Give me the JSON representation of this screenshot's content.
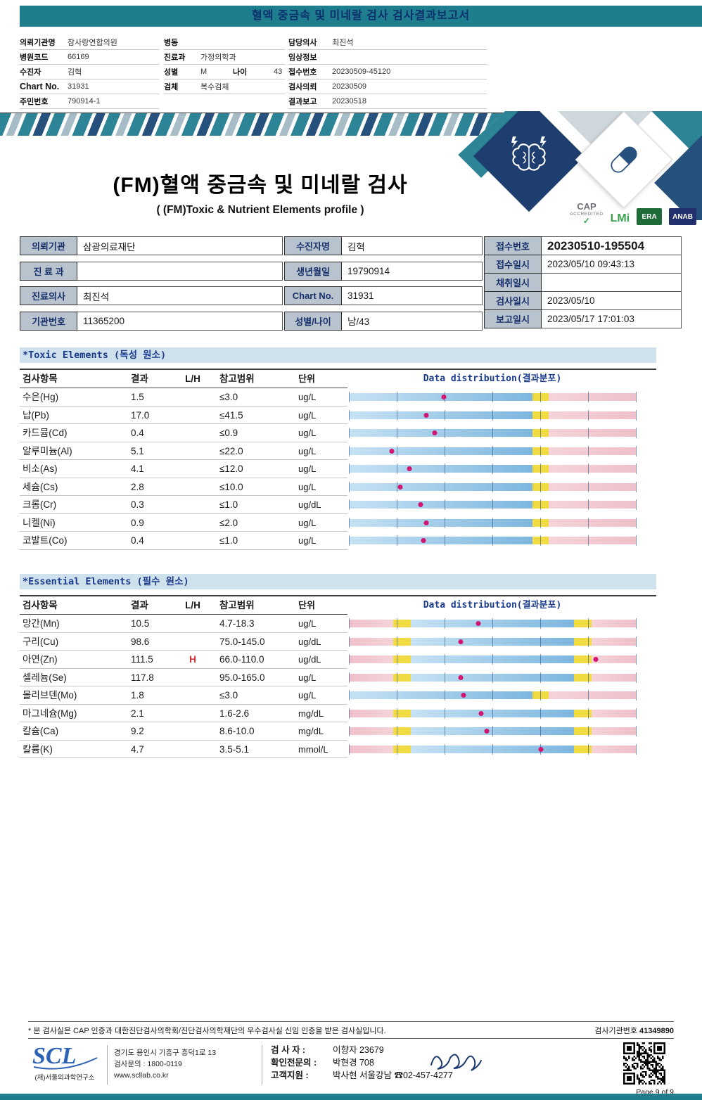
{
  "colors": {
    "teal": "#1f7e8d",
    "navy": "#15357a",
    "section_bg": "#cfe1ec",
    "label_bg": "#b8c3cd",
    "bar_blue_light": "#c6e2f4",
    "bar_blue": "#7db6de",
    "bar_yellow": "#f0db43",
    "bar_pink": "#efc0ca",
    "bar_pink_light": "#f5d3d9",
    "dot": "#d21670",
    "flag_red": "#d83030"
  },
  "top_bar": {
    "title": "혈액 중금속 및 미네랄 검사 검사결과보고서"
  },
  "patient_header": {
    "col1": [
      {
        "label": "의뢰기관명",
        "value": "참사랑연합의원"
      },
      {
        "label": "병원코드",
        "value": "66169"
      },
      {
        "label": "수진자",
        "value": "김혁"
      },
      {
        "label": "Chart No.",
        "value": "31931"
      },
      {
        "label": "주민번호",
        "value": "790914-1"
      }
    ],
    "col2": [
      {
        "label": "병동",
        "value": ""
      },
      {
        "label": "진료과",
        "value": "가정의학과"
      },
      {
        "label": "성별",
        "value": "M",
        "label2": "나이",
        "value2": "43"
      },
      {
        "label": "검체",
        "value": "복수검체"
      }
    ],
    "col3": [
      {
        "label": "담당의사",
        "value": "최진석"
      },
      {
        "label": "임상정보",
        "value": ""
      },
      {
        "label": "접수번호",
        "value": "20230509-45120"
      },
      {
        "label": "검사의뢰",
        "value": "20230509"
      },
      {
        "label": "결과보고",
        "value": "20230518"
      }
    ]
  },
  "title_block": {
    "title": "(FM)혈액 중금속 및 미네랄 검사",
    "subtitle": "( (FM)Toxic & Nutrient Elements profile )",
    "cert_logos": [
      {
        "text": "CAP",
        "sub": "ACCREDITED",
        "check": true,
        "color": "#6d7276",
        "style": "cap"
      },
      {
        "text": "LMi",
        "sub": "",
        "check": false,
        "color": "#3aa14e",
        "style": "text"
      },
      {
        "text": "ERA",
        "sub": "",
        "check": false,
        "color": "#1f6b3a",
        "style": "box"
      },
      {
        "text": "ANAB",
        "sub": "",
        "check": false,
        "color": "#23306e",
        "style": "box"
      }
    ]
  },
  "info_table": {
    "left": [
      {
        "label": "의뢰기관",
        "value": "삼광의료재단"
      },
      {
        "label": "진 료 과",
        "value": ""
      },
      {
        "label": "진료의사",
        "value": "최진석"
      },
      {
        "label": "기관번호",
        "value": "11365200"
      }
    ],
    "mid": [
      {
        "label": "수진자명",
        "value": "김혁"
      },
      {
        "label": "생년월일",
        "value": "19790914"
      },
      {
        "label": "Chart No.",
        "value": "31931"
      },
      {
        "label": "성별/나이",
        "value": "남/43"
      }
    ],
    "right": [
      {
        "label": "접수번호",
        "value": "20230510-195504",
        "big": true
      },
      {
        "label": "접수일시",
        "value": "2023/05/10 09:43:13"
      },
      {
        "label": "채취일시",
        "value": ""
      },
      {
        "label": "검사일시",
        "value": "2023/05/10"
      },
      {
        "label": "보고일시",
        "value": "2023/05/17 17:01:03"
      }
    ]
  },
  "sections": [
    {
      "title": "*Toxic Elements (독성 원소)",
      "columns": [
        "검사항목",
        "결과",
        "L/H",
        "참고범위",
        "단위",
        "Data distribution(결과분포)"
      ],
      "rows": [
        {
          "item": "수은(Hg)",
          "result": "1.5",
          "flag": "",
          "range": "≤3.0",
          "unit": "ug/L",
          "bar": "upper",
          "dot": 0.33
        },
        {
          "item": "납(Pb)",
          "result": "17.0",
          "flag": "",
          "range": "≤41.5",
          "unit": "ug/L",
          "bar": "upper",
          "dot": 0.27
        },
        {
          "item": "카드뮴(Cd)",
          "result": "0.4",
          "flag": "",
          "range": "≤0.9",
          "unit": "ug/L",
          "bar": "upper",
          "dot": 0.3
        },
        {
          "item": "알루미늄(Al)",
          "result": "5.1",
          "flag": "",
          "range": "≤22.0",
          "unit": "ug/L",
          "bar": "upper",
          "dot": 0.15
        },
        {
          "item": "비소(As)",
          "result": "4.1",
          "flag": "",
          "range": "≤12.0",
          "unit": "ug/L",
          "bar": "upper",
          "dot": 0.21
        },
        {
          "item": "세슘(Cs)",
          "result": "2.8",
          "flag": "",
          "range": "≤10.0",
          "unit": "ug/L",
          "bar": "upper",
          "dot": 0.18
        },
        {
          "item": "크롬(Cr)",
          "result": "0.3",
          "flag": "",
          "range": "≤1.0",
          "unit": "ug/dL",
          "bar": "upper",
          "dot": 0.25
        },
        {
          "item": "니켈(Ni)",
          "result": "0.9",
          "flag": "",
          "range": "≤2.0",
          "unit": "ug/L",
          "bar": "upper",
          "dot": 0.27
        },
        {
          "item": "코발트(Co)",
          "result": "0.4",
          "flag": "",
          "range": "≤1.0",
          "unit": "ug/L",
          "bar": "upper",
          "dot": 0.26
        }
      ]
    },
    {
      "title": "*Essential Elements (필수 원소)",
      "columns": [
        "검사항목",
        "결과",
        "L/H",
        "참고범위",
        "단위",
        "Data distribution(결과분포)"
      ],
      "rows": [
        {
          "item": "망간(Mn)",
          "result": "10.5",
          "flag": "",
          "range": "4.7-18.3",
          "unit": "ug/L",
          "bar": "range",
          "dot": 0.45
        },
        {
          "item": "구리(Cu)",
          "result": "98.6",
          "flag": "",
          "range": "75.0-145.0",
          "unit": "ug/dL",
          "bar": "range",
          "dot": 0.39
        },
        {
          "item": "아연(Zn)",
          "result": "111.5",
          "flag": "H",
          "range": "66.0-110.0",
          "unit": "ug/dL",
          "bar": "range",
          "dot": 0.86
        },
        {
          "item": "셀레늄(Se)",
          "result": "117.8",
          "flag": "",
          "range": "95.0-165.0",
          "unit": "ug/L",
          "bar": "range",
          "dot": 0.39
        },
        {
          "item": "몰리브덴(Mo)",
          "result": "1.8",
          "flag": "",
          "range": "≤3.0",
          "unit": "ug/L",
          "bar": "upper",
          "dot": 0.4
        },
        {
          "item": "마그네슘(Mg)",
          "result": "2.1",
          "flag": "",
          "range": "1.6-2.6",
          "unit": "mg/dL",
          "bar": "range",
          "dot": 0.46
        },
        {
          "item": "칼슘(Ca)",
          "result": "9.2",
          "flag": "",
          "range": "8.6-10.0",
          "unit": "mg/dL",
          "bar": "range",
          "dot": 0.48
        },
        {
          "item": "칼륨(K)",
          "result": "4.7",
          "flag": "",
          "range": "3.5-5.1",
          "unit": "mmol/L",
          "bar": "range",
          "dot": 0.67
        }
      ]
    }
  ],
  "footer": {
    "cert_note": "* 본 검사실은 CAP 인증과 대한진단검사의학회/진단검사의학재단의 우수검사실 신임 인증을 받은 검사실입니다.",
    "org_no_label": "검사기관번호",
    "org_no_value": "41349890",
    "logo_text": "SCL",
    "org_name": "(재)서울의과학연구소",
    "address": "경기도 용인시 기흥구 흥덕1로 13",
    "phone": "검사문의 : 1800-0119",
    "website": "www.scllab.co.kr",
    "staff": [
      {
        "label": "검 사 자 :",
        "value": "이향자 23679"
      },
      {
        "label": "확인전문의 :",
        "value": "박현경 708"
      },
      {
        "label": "고객지원 :",
        "value": "박사현 서울강남 ☎02-457-4277"
      }
    ],
    "page": "Page 9 of 9"
  }
}
